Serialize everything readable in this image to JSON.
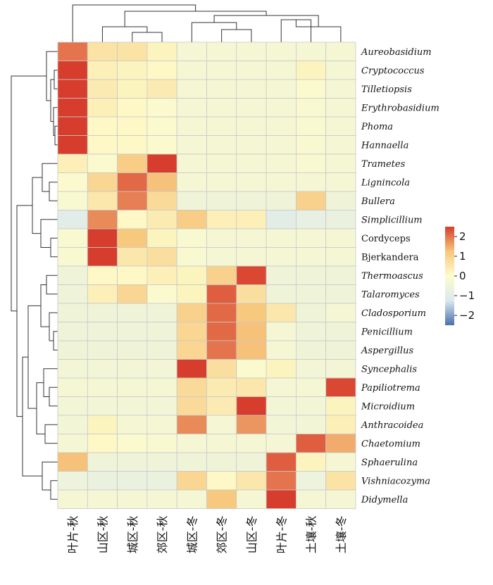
{
  "chart_data": {
    "type": "heatmap",
    "title": "",
    "xlabel": "",
    "ylabel": "",
    "columns": [
      "叶片-秋",
      "山区-秋",
      "城区-秋",
      "郊区-秋",
      "城区-冬",
      "郊区-冬",
      "山区-冬",
      "叶片-冬",
      "土壤-秋",
      "土壤-冬"
    ],
    "rows": [
      "Aureobasidium",
      "Cryptococcus",
      "Tilletiopsis",
      "Erythrobasidium",
      "Phoma",
      "Hannaella",
      "Trametes",
      "Lignincola",
      "Bullera",
      "Simplicillium",
      "Cordyceps",
      "Bjerkandera",
      "Thermoascus",
      "Talaromyces",
      "Cladosporium",
      "Penicillium",
      "Aspergillus",
      "Syncephalis",
      "Papiliotrema",
      "Microidium",
      "Anthracoidea",
      "Chaetomium",
      "Sphaerulina",
      "Vishniacozyma",
      "Didymella"
    ],
    "italic_rows": [
      "Aureobasidium",
      "Cryptococcus",
      "Tilletiopsis",
      "Erythrobasidium",
      "Phoma",
      "Hannaella",
      "Trametes",
      "Lignincola",
      "Bullera",
      "Simplicillium",
      "Thermoascus",
      "Talaromyces",
      "Cladosporium",
      "Penicillium",
      "Aspergillus",
      "Syncephalis",
      "Papiliotrema",
      "Microidium",
      "Anthracoidea",
      "Chaetomium",
      "Sphaerulina",
      "Vishniacozyma",
      "Didymella"
    ],
    "values": [
      [
        2.0,
        0.6,
        0.6,
        0.2,
        -0.3,
        -0.3,
        -0.3,
        -0.3,
        -0.3,
        -0.3
      ],
      [
        2.7,
        0.3,
        0.2,
        0.1,
        -0.3,
        -0.3,
        -0.3,
        -0.3,
        0.2,
        -0.3
      ],
      [
        2.6,
        0.4,
        0.2,
        0.4,
        -0.3,
        -0.3,
        -0.3,
        -0.3,
        -0.1,
        -0.3
      ],
      [
        2.6,
        0.3,
        0.1,
        -0.1,
        -0.3,
        -0.3,
        -0.3,
        -0.3,
        -0.2,
        -0.3
      ],
      [
        2.6,
        0.1,
        0.1,
        -0.1,
        -0.3,
        -0.3,
        -0.3,
        -0.3,
        -0.2,
        -0.3
      ],
      [
        2.6,
        0.1,
        0.1,
        -0.1,
        -0.3,
        -0.3,
        -0.3,
        -0.3,
        -0.2,
        -0.3
      ],
      [
        0.3,
        -0.1,
        1.1,
        2.5,
        -0.3,
        -0.3,
        -0.3,
        -0.3,
        -0.2,
        -0.3
      ],
      [
        -0.1,
        0.9,
        2.1,
        1.3,
        -0.3,
        -0.3,
        -0.3,
        -0.3,
        -0.3,
        -0.3
      ],
      [
        -0.2,
        0.5,
        1.9,
        0.8,
        -0.5,
        -0.5,
        -0.5,
        -0.5,
        1.0,
        -0.5
      ],
      [
        -1.0,
        1.8,
        0.1,
        0.4,
        1.1,
        0.3,
        0.3,
        -1.0,
        -0.8,
        -0.7
      ],
      [
        -0.2,
        2.6,
        1.2,
        0.2,
        -0.2,
        -0.3,
        -0.3,
        -0.3,
        -0.3,
        -0.3
      ],
      [
        -0.2,
        2.7,
        0.5,
        0.7,
        -0.2,
        -0.3,
        -0.3,
        -0.3,
        -0.3,
        -0.3
      ],
      [
        -0.5,
        0.1,
        0.1,
        0.3,
        0.2,
        1.0,
        2.4,
        -0.5,
        -0.5,
        -0.5
      ],
      [
        -0.5,
        0.3,
        0.9,
        -0.1,
        0.2,
        2.2,
        0.7,
        -0.5,
        -0.5,
        -0.5
      ],
      [
        -0.5,
        -0.5,
        -0.5,
        -0.5,
        1.0,
        2.1,
        1.2,
        0.5,
        -0.5,
        -0.3
      ],
      [
        -0.5,
        -0.5,
        -0.5,
        -0.5,
        0.9,
        2.1,
        1.3,
        -0.3,
        -0.5,
        -0.5
      ],
      [
        -0.5,
        -0.5,
        -0.5,
        -0.5,
        0.9,
        2.0,
        1.3,
        -0.3,
        -0.5,
        -0.5
      ],
      [
        -0.4,
        -0.4,
        -0.4,
        -0.4,
        2.6,
        0.7,
        -0.1,
        0.2,
        -0.4,
        -0.4
      ],
      [
        -0.3,
        -0.3,
        -0.3,
        -0.3,
        0.8,
        0.4,
        0.5,
        -0.3,
        -0.3,
        2.4
      ],
      [
        -0.4,
        -0.4,
        -0.4,
        -0.4,
        0.8,
        0.4,
        2.6,
        -0.4,
        -0.4,
        0.2
      ],
      [
        -0.4,
        0.2,
        -0.3,
        -0.3,
        1.8,
        -0.3,
        1.7,
        -0.4,
        -0.4,
        0.3
      ],
      [
        -0.3,
        0.1,
        -0.1,
        -0.2,
        -0.3,
        -0.3,
        -0.3,
        -0.3,
        2.2,
        1.5
      ],
      [
        1.3,
        -0.5,
        -0.5,
        -0.5,
        -0.5,
        -0.5,
        -0.5,
        2.2,
        0.2,
        -0.3
      ],
      [
        -0.6,
        -0.7,
        -0.7,
        -0.7,
        0.9,
        0.1,
        0.5,
        2.0,
        -0.6,
        0.6
      ],
      [
        -0.3,
        -0.3,
        -0.3,
        -0.3,
        -0.3,
        1.2,
        -0.3,
        2.6,
        -0.3,
        -0.3
      ]
    ],
    "colorbar": {
      "min": -2.5,
      "max": 2.5,
      "ticks": [
        2,
        1,
        0,
        -1,
        -2
      ],
      "tick_labels": [
        "2",
        "1",
        "0",
        "−1",
        "−2"
      ],
      "colors": [
        "#4a6fac",
        "#dbe9ef",
        "#fdfccb",
        "#f7c77c",
        "#d73d2d"
      ]
    },
    "grid": true,
    "cell_border_color": "#c8c8c8",
    "dendrograms": [
      "top",
      "left"
    ],
    "legend_position": "right"
  }
}
